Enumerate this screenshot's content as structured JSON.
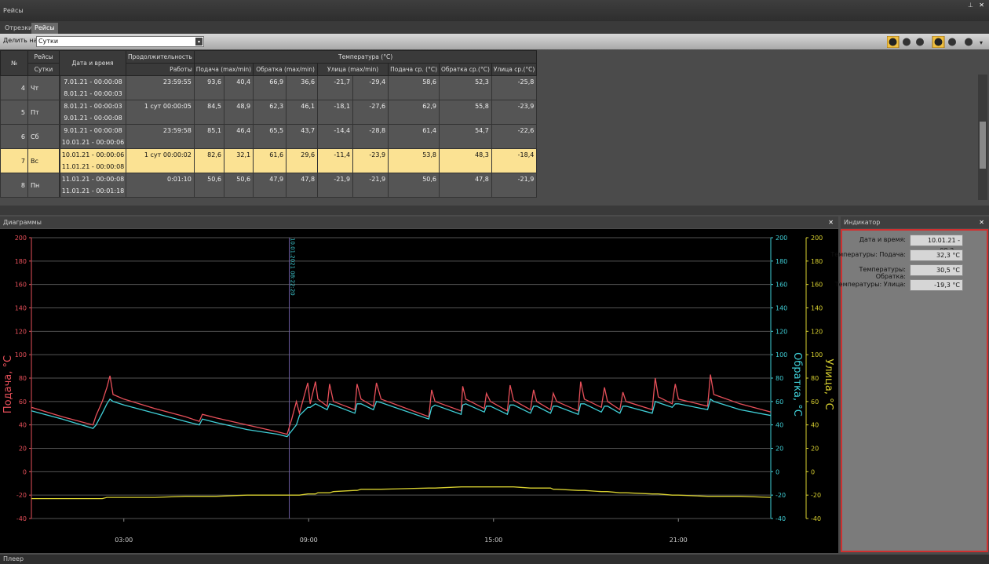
{
  "window": {
    "title": "Рейсы"
  },
  "tabs": [
    "Отрезки",
    "Рейсы"
  ],
  "toolbar": {
    "label": "Делить на:",
    "value": "Сутки"
  },
  "table": {
    "header": {
      "no": "№",
      "trips": "Рейсы",
      "days": "Сутки",
      "datetime": "Дата и время",
      "duration": "Продолжительность",
      "work": "Работы",
      "temperature": "Температура (°C)",
      "columns": [
        "Подача (max/min)",
        "Обратка (max/min)",
        "Улица (max/min)",
        "Подача ср. (°C)",
        "Обратка ср.(°C)",
        "Улица ср.(°C)"
      ]
    },
    "selected_row": 3,
    "rows": [
      {
        "no": "4",
        "day": "Чт",
        "start": "7.01.21 - 00:00:08",
        "end": "8.01.21 - 00:00:03",
        "duration": "23:59:55",
        "values": [
          "93,6",
          "40,4",
          "66,9",
          "36,6",
          "-21,7",
          "-29,4",
          "58,6",
          "52,3",
          "-25,8"
        ]
      },
      {
        "no": "5",
        "day": "Пт",
        "start": "8.01.21 - 00:00:03",
        "end": "9.01.21 - 00:00:08",
        "duration": "1 сут 00:00:05",
        "values": [
          "84,5",
          "48,9",
          "62,3",
          "46,1",
          "-18,1",
          "-27,6",
          "62,9",
          "55,8",
          "-23,9"
        ]
      },
      {
        "no": "6",
        "day": "Сб",
        "start": "9.01.21 - 00:00:08",
        "end": "10.01.21 - 00:00:06",
        "duration": "23:59:58",
        "values": [
          "85,1",
          "46,4",
          "65,5",
          "43,7",
          "-14,4",
          "-28,8",
          "61,4",
          "54,7",
          "-22,6"
        ]
      },
      {
        "no": "7",
        "day": "Вс",
        "start": "10.01.21 - 00:00:06",
        "end": "11.01.21 - 00:00:08",
        "duration": "1 сут 00:00:02",
        "values": [
          "82,6",
          "32,1",
          "61,6",
          "29,6",
          "-11,4",
          "-23,9",
          "53,8",
          "48,3",
          "-18,4"
        ]
      },
      {
        "no": "8",
        "day": "Пн",
        "start": "11.01.21 - 00:00:08",
        "end": "11.01.21 - 00:01:18",
        "duration": "0:01:10",
        "values": [
          "50,6",
          "50,6",
          "47,9",
          "47,8",
          "-21,9",
          "-21,9",
          "50,6",
          "47,8",
          "-21,9"
        ]
      }
    ]
  },
  "diagram_panel": {
    "title": "Диаграммы"
  },
  "chart_data": {
    "type": "line",
    "x": [
      0,
      1,
      2,
      2.1,
      2.3,
      2.45,
      2.55,
      2.65,
      3,
      4,
      5,
      5.45,
      5.55,
      6,
      7,
      8,
      8.3,
      8.45,
      8.6,
      8.7,
      8.97,
      9.05,
      9.22,
      9.3,
      9.6,
      9.68,
      9.8,
      10.5,
      10.57,
      10.7,
      11.1,
      11.2,
      11.35,
      12.9,
      12.99,
      13.1,
      13.95,
      14,
      14.1,
      14.7,
      14.77,
      14.9,
      15.45,
      15.54,
      15.65,
      16.2,
      16.3,
      16.4,
      16.85,
      16.94,
      17.05,
      17.75,
      17.83,
      17.95,
      18.5,
      18.6,
      18.7,
      19.1,
      19.2,
      19.3,
      20.15,
      20.25,
      20.35,
      20.8,
      20.9,
      21,
      21.95,
      22.04,
      22.15,
      23,
      24
    ],
    "series": [
      {
        "name": "Подача, °C",
        "color": "#e8505a",
        "values": [
          55,
          47,
          40,
          48,
          60,
          72,
          82,
          66,
          62,
          54,
          47,
          43,
          49,
          46,
          40,
          34,
          32,
          45,
          60,
          50,
          76,
          58,
          77,
          62,
          56,
          75,
          60,
          53,
          75,
          62,
          56,
          76,
          62,
          47,
          70,
          60,
          52,
          73,
          62,
          54,
          67,
          60,
          52,
          74,
          61,
          53,
          70,
          60,
          53,
          67,
          60,
          52,
          77,
          62,
          55,
          72,
          60,
          53,
          68,
          60,
          53,
          80,
          64,
          58,
          75,
          62,
          56,
          83,
          66,
          58,
          51
        ]
      },
      {
        "name": "Обратка, °C",
        "color": "#40d0d8",
        "axis": "y2",
        "values": [
          52,
          45,
          37,
          40,
          50,
          58,
          62,
          60,
          57,
          50,
          43,
          40,
          45,
          42,
          36,
          32,
          30,
          35,
          40,
          48,
          55,
          55,
          58,
          57,
          53,
          58,
          57,
          50,
          58,
          58,
          53,
          60,
          59,
          45,
          55,
          57,
          49,
          57,
          58,
          51,
          56,
          56,
          49,
          57,
          57,
          50,
          56,
          56,
          50,
          56,
          56,
          49,
          58,
          58,
          51,
          56,
          56,
          50,
          56,
          56,
          50,
          60,
          59,
          55,
          58,
          58,
          53,
          62,
          60,
          53,
          48
        ]
      },
      {
        "name": "Улица, °C",
        "color": "#d8d030",
        "axis": "y3",
        "values": [
          -23,
          -23,
          -23,
          -23,
          -23,
          -22,
          -22,
          -22,
          -22,
          -22,
          -21,
          -21,
          -21,
          -21,
          -20,
          -20,
          -20,
          -20,
          -20,
          -20,
          -19,
          -19,
          -19,
          -18,
          -18,
          -18,
          -17,
          -16,
          -16,
          -15,
          -15,
          -15,
          -15,
          -14,
          -14,
          -14,
          -13,
          -13,
          -13,
          -13,
          -13,
          -13,
          -13,
          -13,
          -13,
          -14,
          -14,
          -14,
          -14,
          -15,
          -15,
          -16,
          -16,
          -16,
          -17,
          -17,
          -17,
          -18,
          -18,
          -18,
          -19,
          -19,
          -19,
          -20,
          -20,
          -20,
          -21,
          -21,
          -21,
          -21,
          -22
        ]
      }
    ],
    "xlim": [
      0,
      24
    ],
    "xticks": [
      {
        "value": 3,
        "label": "03:00"
      },
      {
        "value": 9,
        "label": "09:00"
      },
      {
        "value": 15,
        "label": "15:00"
      },
      {
        "value": 21,
        "label": "21:00"
      }
    ],
    "ylim": [
      -40,
      200
    ],
    "yticks": [
      -40,
      -20,
      0,
      20,
      40,
      60,
      80,
      100,
      120,
      140,
      160,
      180,
      200
    ],
    "y2lim": [
      -40,
      200
    ],
    "y2ticks": [
      -40,
      -20,
      0,
      20,
      40,
      60,
      80,
      100,
      120,
      140,
      160,
      180,
      200
    ],
    "y3lim": [
      -40,
      200
    ],
    "y3ticks": [
      -40,
      -20,
      0,
      20,
      40,
      60,
      80,
      100,
      120,
      140,
      160,
      180,
      200
    ],
    "grid": true,
    "cursor": {
      "x": 8.37,
      "label": "10.01.2021  08:22:20"
    }
  },
  "indicator": {
    "title": "Индикатор",
    "fields": [
      {
        "label": "Дата и время:",
        "value": "10.01.21 - 08:2..."
      },
      {
        "label": "Температуры: Подача:",
        "value": "32,3 °C"
      },
      {
        "label": "Температуры: Обратка:",
        "value": "30,5 °C"
      },
      {
        "label": "Температуры: Улица:",
        "value": "-19,3 °C"
      }
    ]
  },
  "footer": {
    "title": "Плеер"
  }
}
